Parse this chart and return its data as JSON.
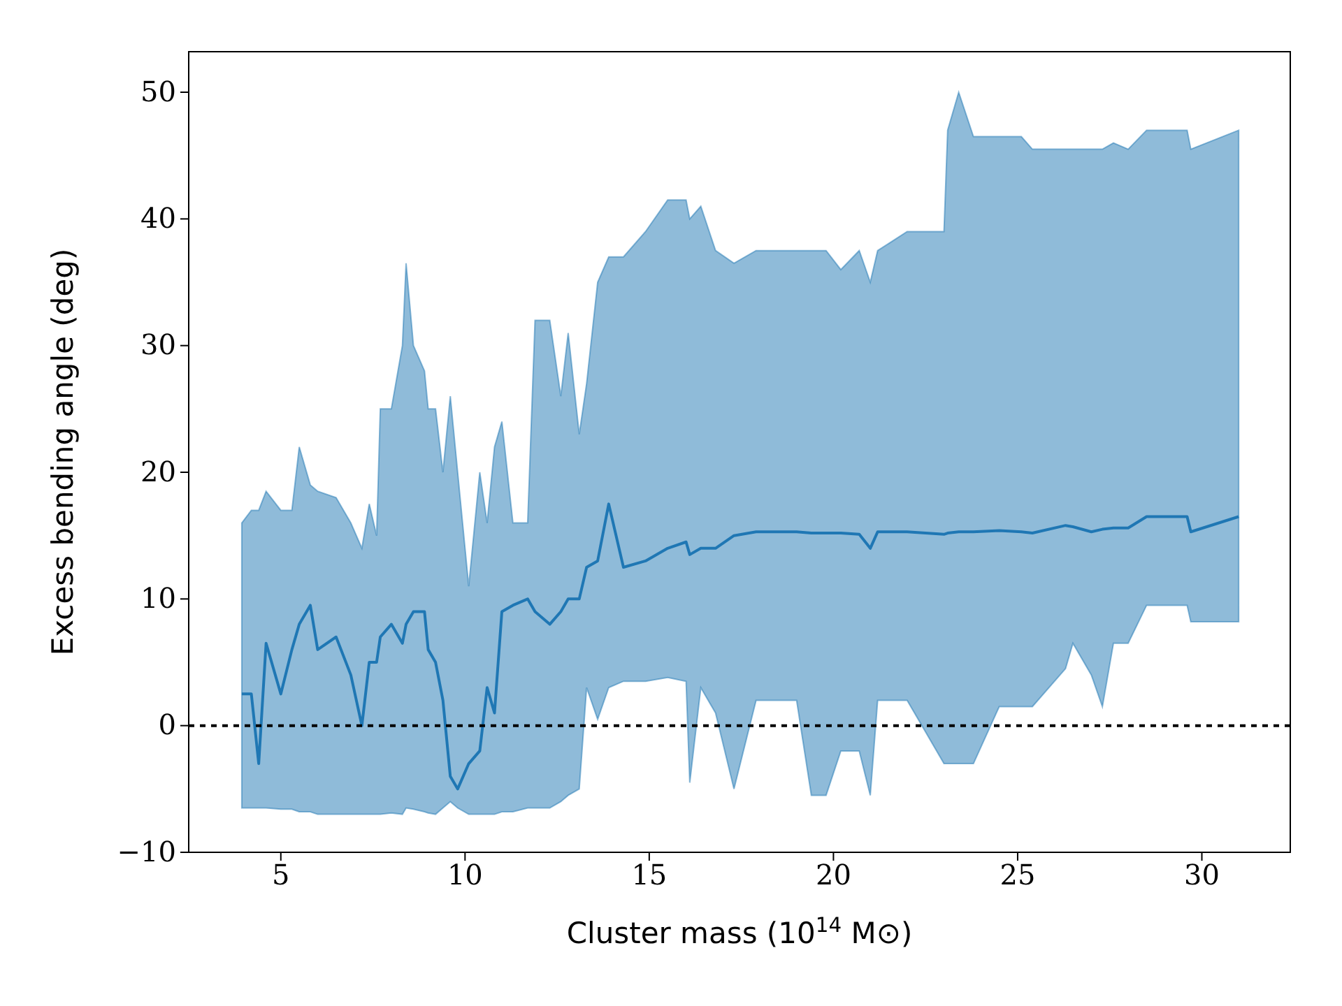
{
  "chart_data": {
    "type": "line",
    "xlabel": "Cluster mass (10$^{14}$ M⊙)",
    "ylabel": "Excess bending angle (deg)",
    "xlim": [
      2.5,
      32.4
    ],
    "ylim": [
      -10,
      53.2
    ],
    "xticks": [
      5,
      10,
      15,
      20,
      25,
      30
    ],
    "yticks": [
      -10,
      0,
      10,
      20,
      30,
      40,
      50
    ],
    "grid": false,
    "ref_lines": [
      {
        "axis": "y",
        "value": 0,
        "color": "#000000",
        "line_style": "dotted"
      }
    ],
    "series": [
      {
        "color": "#1f77b4",
        "x": [
          3.94,
          4.2,
          4.4,
          4.6,
          5.0,
          5.3,
          5.5,
          5.8,
          6.0,
          6.5,
          6.9,
          7.2,
          7.4,
          7.6,
          7.7,
          8.0,
          8.3,
          8.4,
          8.6,
          8.9,
          9.0,
          9.2,
          9.4,
          9.6,
          9.8,
          10.1,
          10.4,
          10.6,
          10.8,
          11.0,
          11.3,
          11.7,
          11.9,
          12.3,
          12.6,
          12.8,
          13.1,
          13.3,
          13.6,
          13.9,
          14.3,
          14.9,
          15.5,
          16.0,
          16.1,
          16.4,
          16.8,
          17.3,
          17.9,
          19.0,
          19.4,
          19.8,
          20.2,
          20.7,
          21.0,
          21.2,
          22.0,
          23.0,
          23.1,
          23.4,
          23.8,
          24.5,
          25.1,
          25.4,
          26.3,
          26.5,
          27.0,
          27.3,
          27.6,
          28.0,
          28.5,
          29.6,
          29.7,
          31.0
        ],
        "values": [
          2.5,
          2.5,
          -3,
          6.5,
          2.5,
          6,
          8,
          9.5,
          6,
          7,
          4,
          0,
          5,
          5,
          7,
          8,
          6.5,
          8,
          9,
          9,
          6,
          5,
          2,
          -4,
          -5,
          -3,
          -2,
          3,
          1,
          9,
          9.5,
          10,
          9,
          8,
          9,
          10,
          10,
          12.5,
          13,
          17.5,
          12.5,
          13,
          14,
          14.5,
          13.5,
          14,
          14,
          15,
          15.3,
          15.3,
          15.2,
          15.2,
          15.2,
          15.1,
          14,
          15.3,
          15.3,
          15.1,
          15.2,
          15.3,
          15.3,
          15.4,
          15.3,
          15.2,
          15.8,
          15.7,
          15.3,
          15.5,
          15.6,
          15.6,
          16.5,
          16.5,
          15.3,
          16.5
        ],
        "lower": [
          -6.5,
          -6.5,
          -6.5,
          -6.5,
          -6.6,
          -6.6,
          -6.8,
          -6.8,
          -7,
          -7,
          -7,
          -7,
          -7,
          -7,
          -7,
          -6.9,
          -7,
          -6.5,
          -6.6,
          -6.8,
          -6.9,
          -7,
          -6.5,
          -6,
          -6.5,
          -7,
          -7,
          -7,
          -7,
          -6.8,
          -6.8,
          -6.5,
          -6.5,
          -6.5,
          -6,
          -5.5,
          -5,
          3,
          0.5,
          3,
          3.5,
          3.5,
          3.8,
          3.5,
          -4.5,
          3,
          1,
          -5,
          2,
          2,
          -5.5,
          -5.5,
          -2,
          -2,
          -5.5,
          2,
          2,
          -3,
          -3,
          -3,
          -3,
          1.5,
          1.5,
          1.5,
          4.5,
          6.5,
          4,
          1.5,
          6.5,
          6.5,
          9.5,
          9.5,
          8.2,
          8.2
        ],
        "upper": [
          16,
          17,
          17,
          18.5,
          17,
          17,
          22,
          19,
          18.5,
          18,
          16,
          14,
          17.5,
          15,
          25,
          25,
          30,
          36.5,
          30,
          28,
          25,
          25,
          20,
          26,
          20,
          11,
          20,
          16,
          22,
          24,
          16,
          16,
          32,
          32,
          26,
          31,
          23,
          27,
          35,
          37,
          37,
          39,
          41.5,
          41.5,
          40,
          41,
          37.5,
          36.5,
          37.5,
          37.5,
          37.5,
          37.5,
          36,
          37.5,
          35,
          37.5,
          39,
          39,
          47,
          50,
          46.5,
          46.5,
          46.5,
          45.5,
          45.5,
          45.5,
          45.5,
          45.5,
          46,
          45.5,
          47,
          47,
          45.5,
          47
        ]
      }
    ]
  }
}
